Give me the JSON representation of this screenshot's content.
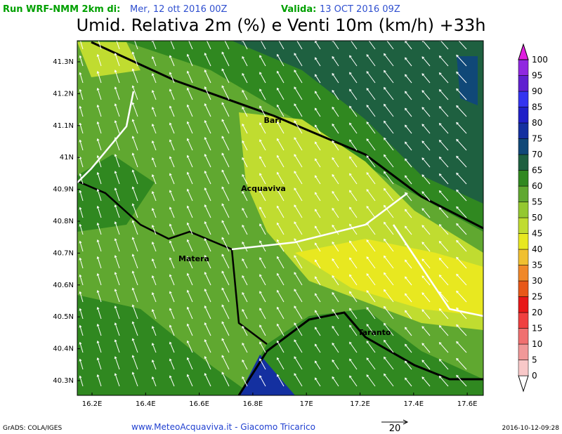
{
  "header": {
    "run_label": "Run WRF-NMM 2km di:",
    "run_date": "Mer, 12 ott 2016 00Z",
    "valid_label": "Valida:",
    "valid_date": "13 OCT 2016 09Z",
    "title": "Umid. Relativa 2m (%) e Venti 10m (km/h) +33h"
  },
  "map": {
    "lat_labels": [
      "41.3N",
      "41.2N",
      "41.1N",
      "41N",
      "40.9N",
      "40.8N",
      "40.7N",
      "40.6N",
      "40.5N",
      "40.4N",
      "40.3N"
    ],
    "lon_labels": [
      "16.2E",
      "16.4E",
      "16.6E",
      "16.8E",
      "17E",
      "17.2E",
      "17.4E",
      "17.6E"
    ],
    "places": [
      "Bari",
      "Acquaviva",
      "Matera",
      "Taranto"
    ]
  },
  "colorbar": {
    "levels": [
      "0",
      "5",
      "10",
      "15",
      "20",
      "25",
      "30",
      "35",
      "40",
      "45",
      "50",
      "55",
      "60",
      "65",
      "70",
      "75",
      "80",
      "85",
      "90",
      "95",
      "100"
    ],
    "colors": [
      "#ffffff",
      "#f8c8c8",
      "#f09898",
      "#f07070",
      "#f04040",
      "#e81818",
      "#e85818",
      "#f08828",
      "#f0c030",
      "#e8e820",
      "#c0dc30",
      "#94c830",
      "#60a830",
      "#308820",
      "#1e6040",
      "#104878",
      "#1430a0",
      "#2020c8",
      "#3434f0",
      "#6020d0",
      "#9028e0",
      "#e020e0"
    ]
  },
  "footer": {
    "credits": "GrADS: COLA/IGES",
    "site": "www.MeteoAcquaviva.it - Giacomo Tricarico",
    "vector_ref": "20",
    "timestamp": "2016-10-12-09:28"
  }
}
